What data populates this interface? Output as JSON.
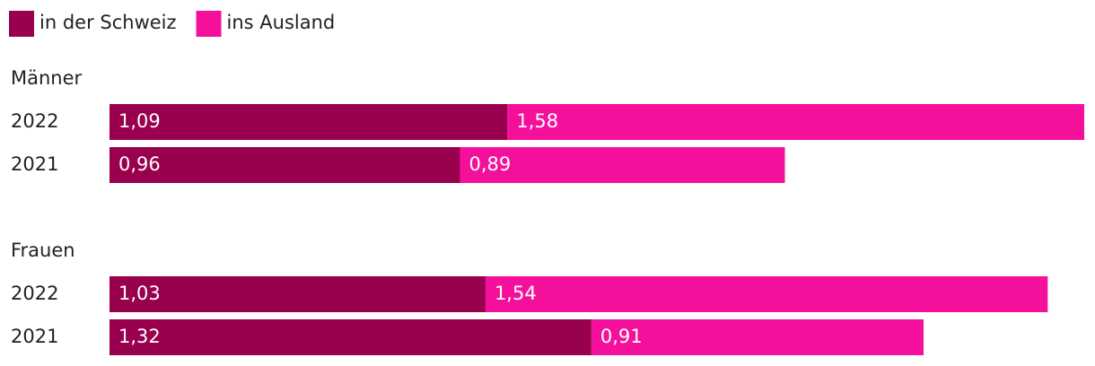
{
  "chart_data": {
    "type": "bar",
    "orientation": "horizontal",
    "stacked": true,
    "series": [
      {
        "name": "in der Schweiz",
        "color": "#99004d",
        "values": [
          [
            1.09,
            0.96
          ],
          [
            1.03,
            1.32
          ]
        ],
        "value_labels": [
          [
            "1,09",
            "0,96"
          ],
          [
            "1,03",
            "1,32"
          ]
        ]
      },
      {
        "name": "ins Ausland",
        "color": "#f5109b",
        "values": [
          [
            1.58,
            0.89
          ],
          [
            1.54,
            0.91
          ]
        ],
        "value_labels": [
          [
            "1,58",
            "0,89"
          ],
          [
            "1,54",
            "0,91"
          ]
        ]
      }
    ],
    "groups": [
      {
        "name": "Männer",
        "categories": [
          "2022",
          "2021"
        ]
      },
      {
        "name": "Frauen",
        "categories": [
          "2022",
          "2021"
        ]
      }
    ]
  }
}
